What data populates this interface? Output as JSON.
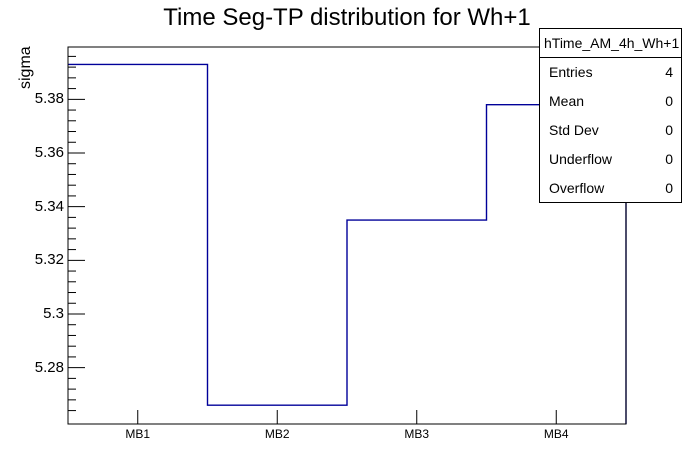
{
  "title": "Time Seg-TP distribution for Wh+1",
  "y_axis": {
    "label": "sigma",
    "major_ticks": [
      {
        "value": 5.38,
        "label": "5.38"
      },
      {
        "value": 5.36,
        "label": "5.36"
      },
      {
        "value": 5.34,
        "label": "5.34"
      },
      {
        "value": 5.32,
        "label": "5.32"
      },
      {
        "value": 5.3,
        "label": "5.3"
      },
      {
        "value": 5.28,
        "label": "5.28"
      }
    ],
    "minor_tick_step": 0.004
  },
  "x_axis": {
    "categories": [
      "MB1",
      "MB2",
      "MB3",
      "MB4"
    ]
  },
  "stats_box": {
    "header": "hTime_AM_4h_Wh+1",
    "rows": [
      {
        "label": "Entries",
        "value": "4"
      },
      {
        "label": "Mean",
        "value": "0"
      },
      {
        "label": "Std Dev",
        "value": "0"
      },
      {
        "label": "Underflow",
        "value": "0"
      },
      {
        "label": "Overflow",
        "value": "0"
      }
    ]
  },
  "chart_data": {
    "type": "line",
    "subtype": "step-histogram",
    "title": "Time Seg-TP distribution for Wh+1",
    "xlabel": "",
    "ylabel": "sigma",
    "categories": [
      "MB1",
      "MB2",
      "MB3",
      "MB4"
    ],
    "values": [
      5.393,
      5.266,
      5.335,
      5.378
    ],
    "ylim": [
      5.259,
      5.3995
    ],
    "grid": false,
    "legend": false,
    "line_color": "#000099"
  },
  "colors": {
    "histogram_line": "#000099",
    "frame": "#000000",
    "background": "#ffffff",
    "text": "#000000"
  }
}
